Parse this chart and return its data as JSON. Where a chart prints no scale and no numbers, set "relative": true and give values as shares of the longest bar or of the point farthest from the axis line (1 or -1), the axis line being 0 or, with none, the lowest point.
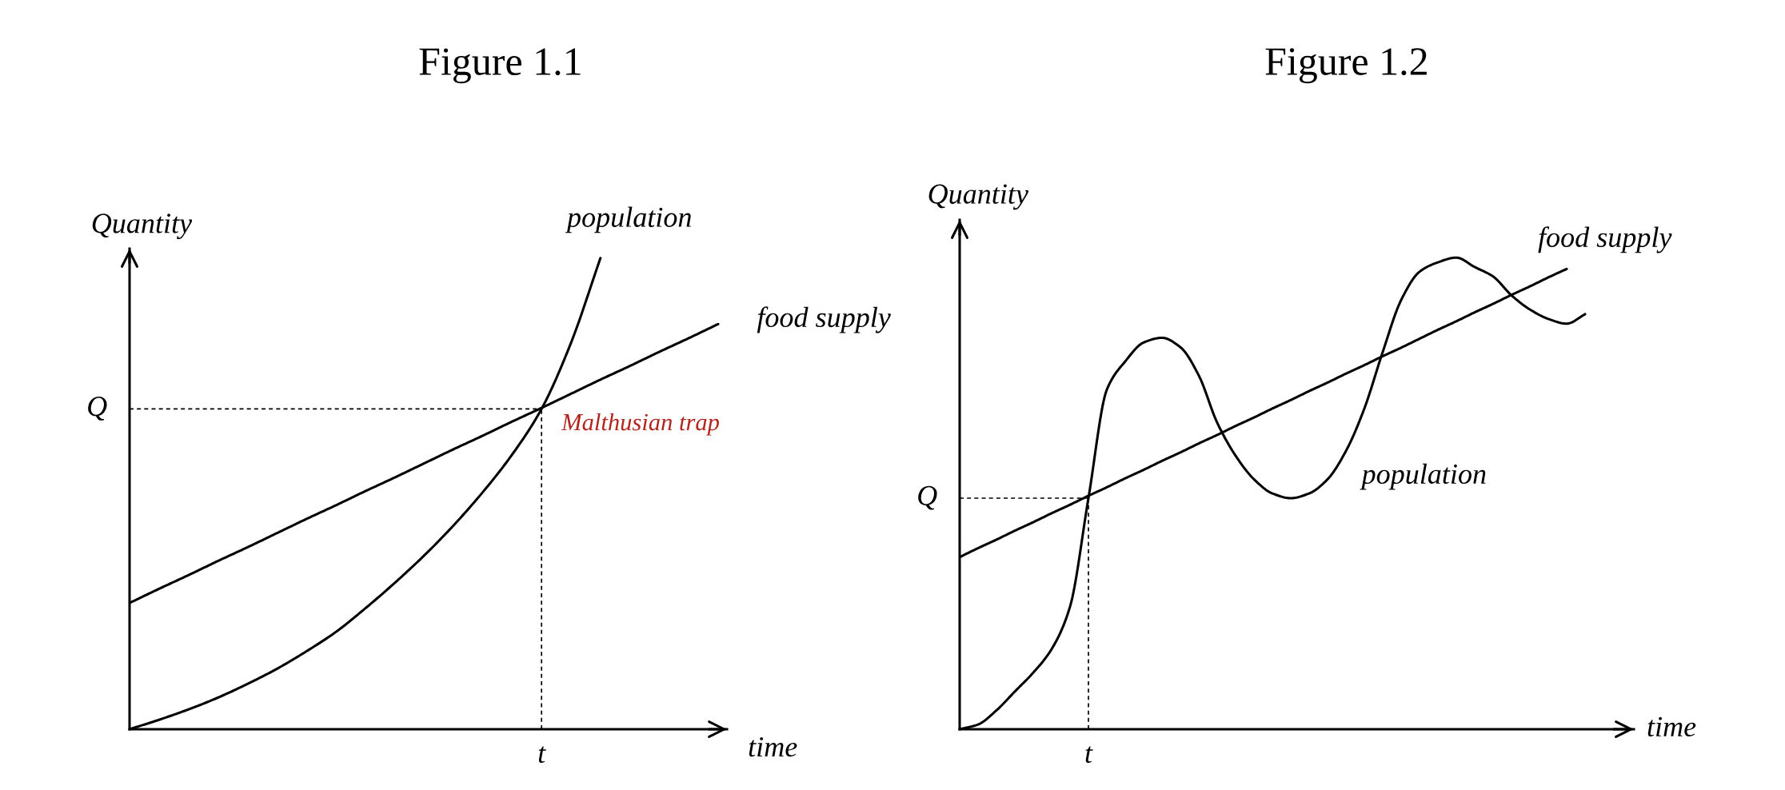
{
  "chart_data": [
    {
      "type": "line",
      "title": "Figure 1.1",
      "xlabel": "time",
      "ylabel": "Quantity",
      "relative": true,
      "categories": [
        null,
        null,
        null,
        null,
        null,
        null,
        null,
        null,
        null,
        null,
        null,
        null,
        null,
        null,
        null,
        null,
        null,
        null,
        null,
        null,
        null
      ],
      "series": [
        {
          "name": "population",
          "color": "#000000",
          "values": [
            0,
            0.02,
            0.042,
            0.067,
            0.096,
            0.128,
            0.165,
            0.206,
            0.256,
            0.31,
            0.368,
            0.432,
            0.503,
            0.583,
            0.68,
            0.82,
            1.0,
            null,
            null,
            null,
            null
          ]
        },
        {
          "name": "food supply",
          "color": "#000000",
          "values": [
            0.268,
            0.298,
            0.327,
            0.357,
            0.386,
            0.416,
            0.446,
            0.475,
            0.505,
            0.534,
            0.564,
            0.594,
            0.623,
            0.653,
            0.682,
            0.712,
            0.742,
            0.771,
            0.801,
            0.83,
            0.86
          ]
        }
      ],
      "ref_lines": [
        {
          "axis": "y",
          "value": 0.68,
          "label": "Q",
          "color": "#000000",
          "line_style": "dashed"
        }
      ],
      "annotations": [
        "Malthusian trap",
        "t"
      ]
    },
    {
      "type": "line",
      "title": "Figure 1.2",
      "xlabel": "time",
      "ylabel": "Quantity",
      "relative": true,
      "categories": [
        null,
        null,
        null,
        null,
        null,
        null,
        null,
        null,
        null,
        null,
        null,
        null,
        null,
        null,
        null,
        null,
        null,
        null,
        null,
        null,
        null,
        null,
        null,
        null,
        null,
        null,
        null,
        null,
        null,
        null,
        null,
        null,
        null,
        null,
        null
      ],
      "series": [
        {
          "name": "population",
          "color": "#000000",
          "values": [
            0,
            0.01,
            0.04,
            0.08,
            0.12,
            0.17,
            0.26,
            0.49,
            0.72,
            0.78,
            0.82,
            0.83,
            0.81,
            0.75,
            0.65,
            0.58,
            0.53,
            0.5,
            0.49,
            0.5,
            0.53,
            0.59,
            0.68,
            0.8,
            0.91,
            0.97,
            0.99,
            1.0,
            0.98,
            0.96,
            0.92,
            0.89,
            0.87,
            0.86,
            0.88
          ]
        },
        {
          "name": "food supply",
          "color": "#000000",
          "values": [
            0.365,
            0.384,
            0.402,
            0.421,
            0.439,
            0.458,
            0.476,
            0.495,
            0.513,
            0.532,
            0.55,
            0.569,
            0.587,
            0.606,
            0.624,
            0.643,
            0.661,
            0.68,
            0.698,
            0.717,
            0.735,
            0.754,
            0.772,
            0.791,
            0.809,
            0.828,
            0.847,
            0.865,
            0.884,
            0.902,
            0.921,
            0.939,
            0.958,
            0.976,
            null
          ]
        }
      ],
      "ref_lines": [
        {
          "axis": "y",
          "value": 0.49,
          "label": "Q",
          "color": "#000000",
          "line_style": "dashed"
        }
      ],
      "annotations": [
        "t"
      ]
    }
  ]
}
